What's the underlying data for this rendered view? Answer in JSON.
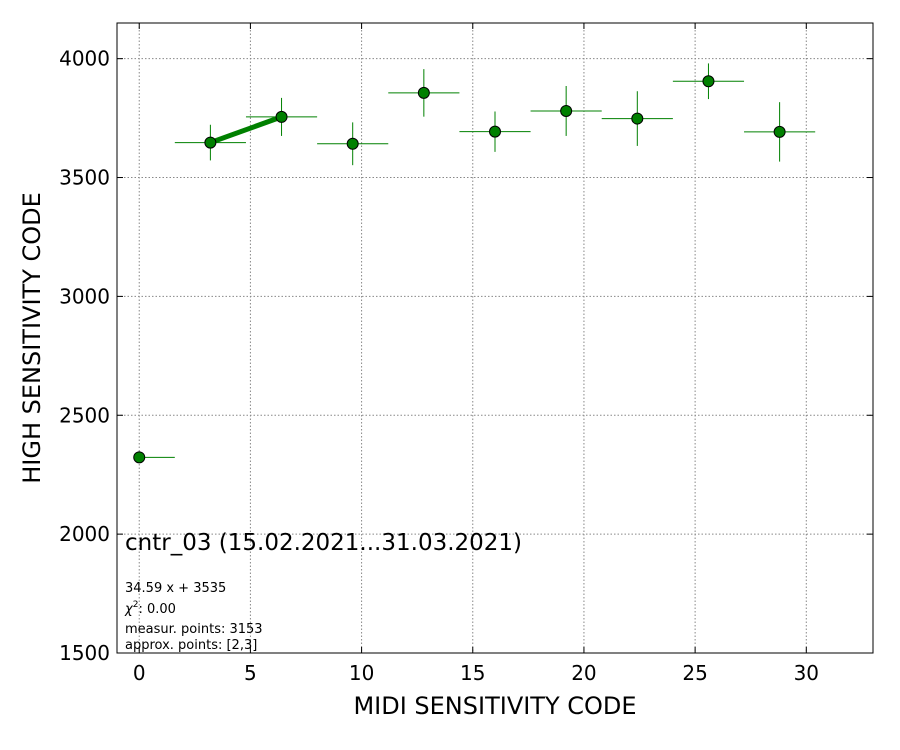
{
  "chart_data": {
    "type": "scatter",
    "xlabel": "MIDI SENSITIVITY CODE",
    "ylabel": "HIGH SENSITIVITY CODE",
    "xlim": [
      -1,
      33
    ],
    "ylim": [
      1500,
      4150
    ],
    "xticks": [
      0,
      5,
      10,
      15,
      20,
      25,
      30
    ],
    "yticks": [
      1500,
      2000,
      2500,
      3000,
      3500,
      4000
    ],
    "grid": true,
    "series": [
      {
        "points": [
          {
            "x": 0.0,
            "y": 2323,
            "xerr_minus": 0.0,
            "xerr_plus": 1.6,
            "yerr": 0
          },
          {
            "x": 3.2,
            "y": 3647,
            "xerr_minus": 1.6,
            "xerr_plus": 1.6,
            "yerr": 75
          },
          {
            "x": 6.4,
            "y": 3755,
            "xerr_minus": 1.6,
            "xerr_plus": 1.6,
            "yerr": 80
          },
          {
            "x": 9.6,
            "y": 3642,
            "xerr_minus": 1.6,
            "xerr_plus": 1.6,
            "yerr": 90
          },
          {
            "x": 12.8,
            "y": 3856,
            "xerr_minus": 1.6,
            "xerr_plus": 1.6,
            "yerr": 100
          },
          {
            "x": 16.0,
            "y": 3693,
            "xerr_minus": 1.6,
            "xerr_plus": 1.6,
            "yerr": 85
          },
          {
            "x": 19.2,
            "y": 3780,
            "xerr_minus": 1.6,
            "xerr_plus": 1.6,
            "yerr": 105
          },
          {
            "x": 22.4,
            "y": 3748,
            "xerr_minus": 1.6,
            "xerr_plus": 1.6,
            "yerr": 115
          },
          {
            "x": 25.6,
            "y": 3905,
            "xerr_minus": 1.6,
            "xerr_plus": 1.6,
            "yerr": 75
          },
          {
            "x": 28.8,
            "y": 3692,
            "xerr_minus": 1.6,
            "xerr_plus": 1.6,
            "yerr": 125
          }
        ]
      }
    ],
    "fit_line": {
      "x_start": 3.2,
      "x_end": 6.4
    },
    "annotations": {
      "title": "cntr_03 (15.02.2021...31.03.2021)",
      "equation": "34.59 x + 3535",
      "chi_symbol": "χ",
      "chi_exp": "2",
      "chi_value": ": 0.00",
      "measur": "measur. points: 3153",
      "approx": "approx. points: [2,3]"
    },
    "colors": {
      "marker": "#008000",
      "marker_edge": "#000000",
      "errorbar": "#008000",
      "fit": "#008000",
      "grid": "#888888"
    }
  }
}
